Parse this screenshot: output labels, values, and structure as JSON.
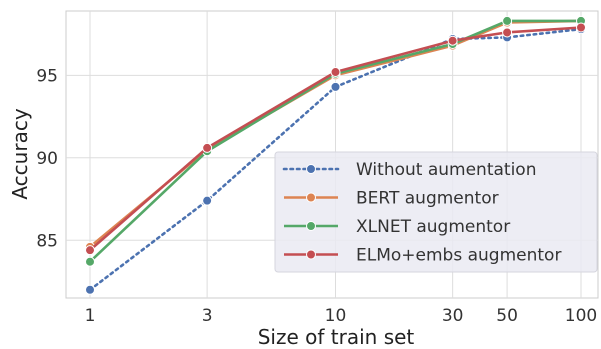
{
  "chart_data": {
    "type": "line",
    "xlabel": "Size of train set",
    "ylabel": "Accuracy",
    "x_scale": "log",
    "x": [
      1,
      3,
      10,
      30,
      50,
      100
    ],
    "x_tick_labels": [
      "1",
      "3",
      "10",
      "30",
      "50",
      "100"
    ],
    "y_ticks": [
      85,
      90,
      95
    ],
    "y_tick_labels": [
      "85",
      "90",
      "95"
    ],
    "ylim": [
      81.5,
      98.9
    ],
    "grid": true,
    "legend_position": "lower-right",
    "series": [
      {
        "name": "Without aumentation",
        "values": [
          82.0,
          87.4,
          94.3,
          97.2,
          97.3,
          97.8
        ],
        "color": "#4c72b0",
        "style": "dotted"
      },
      {
        "name": "BERT augmentor",
        "values": [
          84.6,
          90.5,
          95.0,
          96.8,
          98.2,
          98.3
        ],
        "color": "#dd8452",
        "style": "solid"
      },
      {
        "name": "XLNET augmentor",
        "values": [
          83.7,
          90.4,
          95.1,
          96.9,
          98.3,
          98.3
        ],
        "color": "#55a868",
        "style": "solid"
      },
      {
        "name": "ELMo+embs augmentor",
        "values": [
          84.4,
          90.6,
          95.2,
          97.1,
          97.6,
          97.9
        ],
        "color": "#c44e52",
        "style": "solid"
      }
    ]
  }
}
